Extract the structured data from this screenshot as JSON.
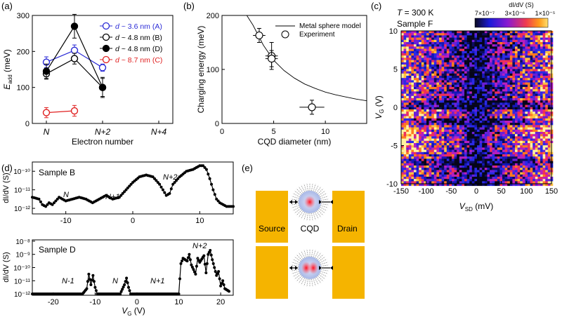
{
  "chart_data": [
    {
      "panel": "(a)",
      "type": "line",
      "xlabel": "Electron number",
      "ylabel": "E_add (meV)",
      "x_ticks": [
        "N",
        "N+2",
        "N+4"
      ],
      "x": [
        0,
        1,
        2
      ],
      "xlim": [
        -0.5,
        4.5
      ],
      "ylim": [
        0,
        300
      ],
      "y_ticks": [
        0,
        100,
        200,
        300
      ],
      "series": [
        {
          "name": "d ~ 3.6 nm (A)",
          "color": "#2b2bd6",
          "filled": false,
          "values": [
            170,
            203,
            155
          ],
          "errors": [
            15,
            15,
            10
          ]
        },
        {
          "name": "d ~ 4.8 nm (B)",
          "color": "#000000",
          "filled": false,
          "values": [
            138,
            180,
            100
          ],
          "errors": [
            15,
            15,
            25
          ]
        },
        {
          "name": "d ~ 4.8 nm (D)",
          "color": "#000000",
          "filled": true,
          "values": [
            145,
            270,
            100
          ],
          "errors": [
            20,
            33,
            28
          ]
        },
        {
          "name": "d ~ 8.7 nm (C)",
          "color": "#e02020",
          "filled": false,
          "values": [
            30,
            35,
            null
          ],
          "errors": [
            14,
            15,
            null
          ]
        }
      ]
    },
    {
      "panel": "(b)",
      "type": "scatter",
      "xlabel": "CQD diameter (nm)",
      "ylabel": "Charging energy (meV)",
      "xlim": [
        0,
        14
      ],
      "ylim": [
        0,
        200
      ],
      "x_ticks": [
        0,
        5,
        10
      ],
      "y_ticks": [
        0,
        100,
        200
      ],
      "legend": [
        "Metal sphere model",
        "Experiment"
      ],
      "experiment": [
        {
          "x": 3.6,
          "y": 163,
          "xerr": 0.6,
          "yerr": 13
        },
        {
          "x": 4.8,
          "y": 125,
          "xerr": 0.6,
          "yerr": 25
        },
        {
          "x": 4.8,
          "y": 120,
          "xerr": 0.6,
          "yerr": 15
        },
        {
          "x": 8.7,
          "y": 30,
          "xerr": 1.2,
          "yerr": 13
        }
      ],
      "model": [
        {
          "x": 2.4,
          "y": 200
        },
        {
          "x": 3.0,
          "y": 182
        },
        {
          "x": 4.0,
          "y": 145
        },
        {
          "x": 5.0,
          "y": 117
        },
        {
          "x": 6.0,
          "y": 98
        },
        {
          "x": 7.0,
          "y": 84
        },
        {
          "x": 8.0,
          "y": 73
        },
        {
          "x": 9.0,
          "y": 65
        },
        {
          "x": 10.0,
          "y": 58
        },
        {
          "x": 11.0,
          "y": 53
        },
        {
          "x": 12.0,
          "y": 49
        },
        {
          "x": 13.0,
          "y": 45
        },
        {
          "x": 14.0,
          "y": 42
        }
      ]
    },
    {
      "panel": "(c)",
      "type": "heatmap",
      "title": "T = 300 K",
      "subtitle": "Sample F",
      "xlabel": "V_SD (mV)",
      "ylabel": "V_G (V)",
      "xlim": [
        -150,
        150
      ],
      "ylim": [
        -10,
        10
      ],
      "x_ticks": [
        -150,
        -100,
        -50,
        0,
        50,
        100,
        150
      ],
      "y_ticks": [
        -10,
        -5,
        0,
        5,
        10
      ],
      "colorbar_label": "dI/dV (S)",
      "colorbar_ticks": [
        "7×10⁻⁷",
        "3×10⁻⁶",
        "1×10⁻⁵"
      ]
    },
    {
      "panel": "(d)",
      "type": "line",
      "subplots": [
        {
          "label": "Sample B",
          "ylabel": "dI/dV (S)",
          "xlim": [
            -15,
            15
          ],
          "x_ticks": [
            -10,
            0,
            10
          ],
          "y_ticks": [
            "10⁻¹²",
            "10⁻¹¹",
            "10⁻¹⁰"
          ],
          "annotations": [
            "N",
            "N+1",
            "N+2"
          ],
          "points": [
            {
              "x": -15,
              "y": -11.4
            },
            {
              "x": -14,
              "y": -11.5
            },
            {
              "x": -13.5,
              "y": -11.8
            },
            {
              "x": -13,
              "y": -11.9
            },
            {
              "x": -12.5,
              "y": -11.7
            },
            {
              "x": -12,
              "y": -11.8
            },
            {
              "x": -11.5,
              "y": -11.6
            },
            {
              "x": -11,
              "y": -11.4
            },
            {
              "x": -10,
              "y": -11.6
            },
            {
              "x": -9,
              "y": -11.5
            },
            {
              "x": -8,
              "y": -11.4
            },
            {
              "x": -7,
              "y": -11.5
            },
            {
              "x": -6,
              "y": -11.7
            },
            {
              "x": -5,
              "y": -11.5
            },
            {
              "x": -4,
              "y": -11.3
            },
            {
              "x": -3,
              "y": -11.5
            },
            {
              "x": -2,
              "y": -11.4
            },
            {
              "x": -1,
              "y": -11.0
            },
            {
              "x": 0,
              "y": -10.6
            },
            {
              "x": 1,
              "y": -10.3
            },
            {
              "x": 2,
              "y": -10.2
            },
            {
              "x": 3,
              "y": -10.3
            },
            {
              "x": 4,
              "y": -10.7
            },
            {
              "x": 5,
              "y": -11.3
            },
            {
              "x": 5.5,
              "y": -11.2
            },
            {
              "x": 6,
              "y": -10.7
            },
            {
              "x": 7,
              "y": -10.3
            },
            {
              "x": 8,
              "y": -10.0
            },
            {
              "x": 9,
              "y": -9.9
            },
            {
              "x": 10,
              "y": -9.7
            },
            {
              "x": 10.5,
              "y": -9.7
            },
            {
              "x": 11,
              "y": -9.9
            },
            {
              "x": 11.5,
              "y": -10.4
            },
            {
              "x": 12,
              "y": -11.0
            },
            {
              "x": 12.5,
              "y": -11.5
            },
            {
              "x": 13,
              "y": -11.7
            },
            {
              "x": 14,
              "y": -11.9
            },
            {
              "x": 15,
              "y": -11.9
            }
          ]
        },
        {
          "label": "Sample D",
          "ylabel": "dI/dV (S)",
          "xlabel": "V_G (V)",
          "xlim": [
            -25,
            23
          ],
          "x_ticks": [
            -20,
            -10,
            0,
            10,
            20
          ],
          "y_ticks": [
            "10⁻¹²",
            "10⁻¹¹",
            "10⁻¹⁰",
            "10⁻⁹",
            "10⁻⁸"
          ],
          "annotations": [
            "N-1",
            "N",
            "N+1",
            "N+2"
          ],
          "points": [
            {
              "x": -25,
              "y": -12
            },
            {
              "x": -13,
              "y": -12
            },
            {
              "x": -12,
              "y": -11.6
            },
            {
              "x": -11.5,
              "y": -10.5
            },
            {
              "x": -11,
              "y": -11.3
            },
            {
              "x": -10.5,
              "y": -10.6
            },
            {
              "x": -10,
              "y": -11.5
            },
            {
              "x": -9.5,
              "y": -12
            },
            {
              "x": -4,
              "y": -12
            },
            {
              "x": -3,
              "y": -11.3
            },
            {
              "x": -2.5,
              "y": -10.8
            },
            {
              "x": -2,
              "y": -11.5
            },
            {
              "x": -1.5,
              "y": -12
            },
            {
              "x": 10,
              "y": -12
            },
            {
              "x": 10.5,
              "y": -9.7
            },
            {
              "x": 11,
              "y": -9.3
            },
            {
              "x": 12,
              "y": -9.5
            },
            {
              "x": 12.5,
              "y": -9.0
            },
            {
              "x": 13,
              "y": -9.8
            },
            {
              "x": 14,
              "y": -10.5
            },
            {
              "x": 14.5,
              "y": -9.3
            },
            {
              "x": 15,
              "y": -9.6
            },
            {
              "x": 16,
              "y": -9.1
            },
            {
              "x": 16.5,
              "y": -10.4
            },
            {
              "x": 17,
              "y": -9.0
            },
            {
              "x": 17.5,
              "y": -8.7
            },
            {
              "x": 18,
              "y": -9.4
            },
            {
              "x": 19,
              "y": -10.6
            },
            {
              "x": 19.5,
              "y": -10.3
            },
            {
              "x": 20,
              "y": -11.4
            },
            {
              "x": 20.5,
              "y": -11.0
            },
            {
              "x": 21,
              "y": -11.6
            },
            {
              "x": 22,
              "y": -11.8
            }
          ]
        }
      ]
    },
    {
      "panel": "(e)",
      "type": "diagram",
      "labels": [
        "Source",
        "CQD",
        "Drain"
      ],
      "colors": {
        "electrode": "#f5b400",
        "charge": "#ff2030",
        "ligand": "#8a8a8a"
      }
    }
  ]
}
